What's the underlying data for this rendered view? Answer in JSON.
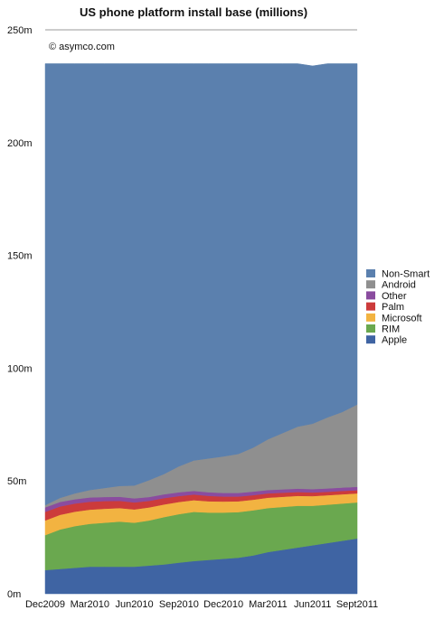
{
  "chart_data": {
    "type": "area",
    "stacked": true,
    "title": "US phone platform install base (millions)",
    "credit": "© asymco.com",
    "xlabel": "",
    "ylabel": "",
    "ylim": [
      0,
      250
    ],
    "yticks": [
      0,
      50,
      100,
      150,
      200,
      250
    ],
    "ytick_labels": [
      "0m",
      "50m",
      "100m",
      "150m",
      "200m",
      "250m"
    ],
    "x_tick_labels": [
      "Dec2009",
      "Mar2010",
      "Jun2010",
      "Sep2010",
      "Dec2010",
      "Mar2011",
      "Jun2011",
      "Sept2011"
    ],
    "x": [
      "Dec2009",
      "Jan2010",
      "Feb2010",
      "Mar2010",
      "Apr2010",
      "May2010",
      "Jun2010",
      "Jul2010",
      "Aug2010",
      "Sep2010",
      "Oct2010",
      "Nov2010",
      "Dec2010",
      "Jan2011",
      "Feb2011",
      "Mar2011",
      "Apr2011",
      "May2011",
      "Jun2011",
      "Jul2011",
      "Aug2011",
      "Sep2011"
    ],
    "legend_position": "right",
    "grid": false,
    "series": [
      {
        "name": "Apple",
        "color": "#3f64a3",
        "values": [
          10.5,
          11.0,
          11.5,
          12.0,
          12.0,
          12.0,
          12.0,
          12.5,
          13.0,
          13.8,
          14.5,
          15.0,
          15.5,
          16.0,
          17.0,
          18.5,
          19.5,
          20.5,
          21.5,
          22.5,
          23.5,
          24.5
        ]
      },
      {
        "name": "RIM",
        "color": "#6aa84f",
        "values": [
          15.5,
          17.5,
          18.5,
          19.0,
          19.5,
          20.0,
          19.5,
          20.0,
          21.0,
          21.5,
          21.8,
          21.0,
          20.5,
          20.2,
          20.0,
          19.5,
          19.0,
          18.5,
          17.5,
          17.0,
          16.5,
          16.0
        ]
      },
      {
        "name": "Microsoft",
        "color": "#f2b341",
        "values": [
          6.5,
          6.5,
          6.4,
          6.3,
          6.2,
          6.0,
          5.9,
          5.8,
          5.6,
          5.4,
          5.2,
          5.0,
          4.9,
          4.8,
          4.7,
          4.6,
          4.5,
          4.4,
          4.3,
          4.2,
          4.1,
          4.0
        ]
      },
      {
        "name": "Palm",
        "color": "#cc3b3b",
        "values": [
          3.8,
          3.7,
          3.6,
          3.5,
          3.4,
          3.2,
          3.1,
          2.9,
          2.8,
          2.6,
          2.5,
          2.4,
          2.2,
          2.1,
          2.0,
          1.9,
          1.8,
          1.7,
          1.6,
          1.5,
          1.5,
          1.4
        ]
      },
      {
        "name": "Other",
        "color": "#8a4c9f",
        "values": [
          2.0,
          2.0,
          1.9,
          1.9,
          1.8,
          1.8,
          1.8,
          1.7,
          1.7,
          1.7,
          1.6,
          1.6,
          1.6,
          1.6,
          1.6,
          1.5,
          1.5,
          1.5,
          1.5,
          1.5,
          1.5,
          1.5
        ]
      },
      {
        "name": "Android",
        "color": "#8f8f8f",
        "values": [
          1.0,
          1.8,
          2.6,
          3.3,
          4.0,
          4.8,
          5.7,
          7.5,
          9.0,
          11.5,
          13.5,
          15.0,
          16.2,
          17.3,
          19.5,
          22.5,
          25.0,
          27.5,
          29.0,
          31.5,
          33.5,
          36.5
        ]
      },
      {
        "name": "Non-Smart",
        "color": "#5b80ae",
        "values": [
          195.7,
          192.5,
          190.5,
          189.0,
          188.1,
          187.2,
          187.0,
          184.6,
          181.9,
          178.5,
          175.9,
          175.0,
          174.1,
          173.0,
          170.2,
          166.5,
          163.7,
          160.9,
          158.6,
          156.8,
          154.4,
          151.1
        ]
      }
    ]
  }
}
